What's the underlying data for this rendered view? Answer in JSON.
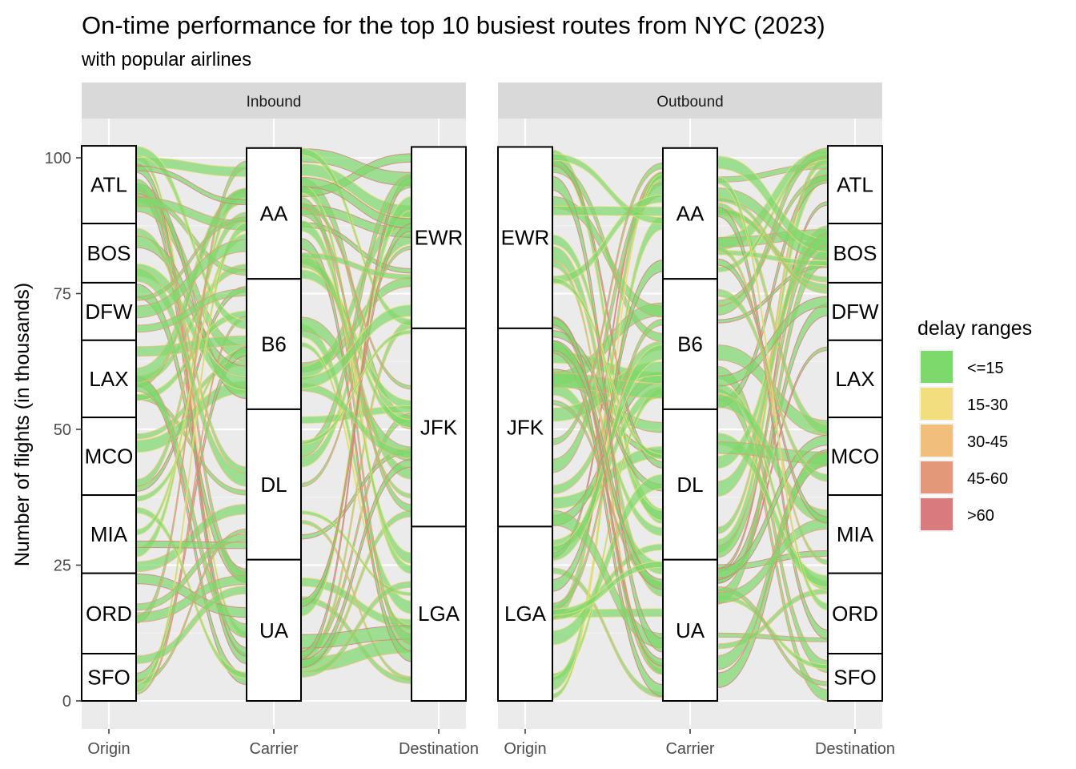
{
  "chart_data": {
    "type": "alluvial",
    "title": "On-time performance for the top 10 busiest routes from NYC (2023)",
    "subtitle": "with popular airlines",
    "ylabel": "Number of flights (in thousands)",
    "ylim": [
      0,
      100
    ],
    "y_ticks": [
      0,
      25,
      50,
      75,
      100
    ],
    "axes": [
      "Origin",
      "Carrier",
      "Destination"
    ],
    "grid": true,
    "legend": {
      "title": "delay ranges",
      "position": "right",
      "entries": [
        {
          "label": "<=15",
          "color": "#7ED96C"
        },
        {
          "label": "15-30",
          "color": "#F2DE7E"
        },
        {
          "label": "30-45",
          "color": "#F1BE7C"
        },
        {
          "label": "45-60",
          "color": "#E4987A"
        },
        {
          "label": ">60",
          "color": "#D97A7E"
        }
      ]
    },
    "panels": [
      {
        "name": "Inbound",
        "strata": {
          "Origin": [
            {
              "label": "ATL",
              "value": 14.3
            },
            {
              "label": "BOS",
              "value": 10.9
            },
            {
              "label": "DFW",
              "value": 10.6
            },
            {
              "label": "LAX",
              "value": 14.2
            },
            {
              "label": "MCO",
              "value": 14.3
            },
            {
              "label": "MIA",
              "value": 14.4
            },
            {
              "label": "ORD",
              "value": 14.8
            },
            {
              "label": "SFO",
              "value": 8.7
            }
          ],
          "Carrier": [
            {
              "label": "AA",
              "value": 24.1
            },
            {
              "label": "B6",
              "value": 24.0
            },
            {
              "label": "DL",
              "value": 27.7
            },
            {
              "label": "UA",
              "value": 26.0
            }
          ],
          "Destination": [
            {
              "label": "EWR",
              "value": 33.4
            },
            {
              "label": "JFK",
              "value": 36.5
            },
            {
              "label": "LGA",
              "value": 32.1
            }
          ]
        }
      },
      {
        "name": "Outbound",
        "strata": {
          "Origin": [
            {
              "label": "EWR",
              "value": 33.4
            },
            {
              "label": "JFK",
              "value": 36.5
            },
            {
              "label": "LGA",
              "value": 32.1
            }
          ],
          "Carrier": [
            {
              "label": "AA",
              "value": 24.1
            },
            {
              "label": "B6",
              "value": 24.0
            },
            {
              "label": "DL",
              "value": 27.7
            },
            {
              "label": "UA",
              "value": 26.0
            }
          ],
          "Destination": [
            {
              "label": "ATL",
              "value": 14.3
            },
            {
              "label": "BOS",
              "value": 10.9
            },
            {
              "label": "DFW",
              "value": 10.6
            },
            {
              "label": "LAX",
              "value": 14.2
            },
            {
              "label": "MCO",
              "value": 14.3
            },
            {
              "label": "MIA",
              "value": 14.4
            },
            {
              "label": "ORD",
              "value": 14.8
            },
            {
              "label": "SFO",
              "value": 8.7
            }
          ]
        }
      }
    ]
  }
}
